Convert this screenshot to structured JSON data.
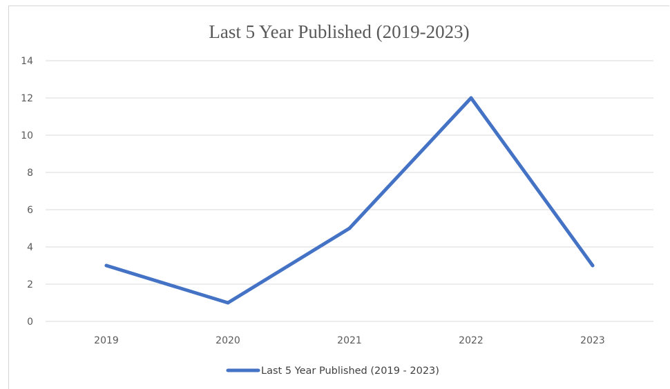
{
  "chart_data": {
    "type": "line",
    "title": "Last 5 Year Published  (2019-2023)",
    "xlabel": "",
    "ylabel": "",
    "categories": [
      "2019",
      "2020",
      "2021",
      "2022",
      "2023"
    ],
    "series": [
      {
        "name": "Last 5 Year Published (2019 - 2023)",
        "values": [
          3,
          1,
          5,
          12,
          3
        ],
        "color": "#4472c4"
      }
    ],
    "ylim": [
      0,
      14
    ],
    "yticks": [
      0,
      2,
      4,
      6,
      8,
      10,
      12,
      14
    ],
    "grid": true,
    "legend": "bottom"
  }
}
